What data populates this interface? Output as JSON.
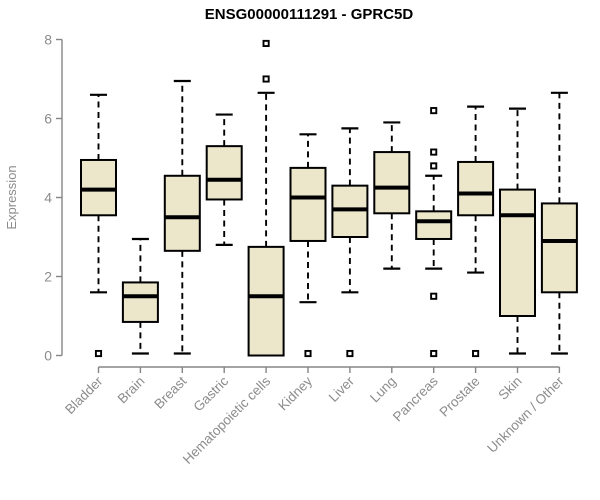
{
  "chart_data": {
    "type": "boxplot",
    "title": "ENSG00000111291 - GPRC5D",
    "xlabel": "",
    "ylabel": "Expression",
    "ylim": [
      0,
      8
    ],
    "yticks": [
      0,
      2,
      4,
      6,
      8
    ],
    "grid": false,
    "legend": "none",
    "categories": [
      "Bladder",
      "Brain",
      "Breast",
      "Gastric",
      "Hematopoietic cells",
      "Kidney",
      "Liver",
      "Lung",
      "Pancreas",
      "Prostate",
      "Skin",
      "Unknown / Other"
    ],
    "series": [
      {
        "name": "Bladder",
        "whisker_low": 1.6,
        "q1": 3.55,
        "median": 4.2,
        "q3": 4.95,
        "whisker_high": 6.6,
        "outliers": [
          0.05
        ]
      },
      {
        "name": "Brain",
        "whisker_low": 0.05,
        "q1": 0.85,
        "median": 1.5,
        "q3": 1.85,
        "whisker_high": 2.95,
        "outliers": []
      },
      {
        "name": "Breast",
        "whisker_low": 0.05,
        "q1": 2.65,
        "median": 3.5,
        "q3": 4.55,
        "whisker_high": 6.95,
        "outliers": []
      },
      {
        "name": "Gastric",
        "whisker_low": 2.8,
        "q1": 3.95,
        "median": 4.45,
        "q3": 5.3,
        "whisker_high": 6.1,
        "outliers": []
      },
      {
        "name": "Hematopoietic cells",
        "whisker_low": 0.0,
        "q1": 0.0,
        "median": 1.5,
        "q3": 2.75,
        "whisker_high": 6.65,
        "outliers": [
          7.9,
          7.0
        ]
      },
      {
        "name": "Kidney",
        "whisker_low": 1.35,
        "q1": 2.9,
        "median": 4.0,
        "q3": 4.75,
        "whisker_high": 5.6,
        "outliers": [
          0.05
        ]
      },
      {
        "name": "Liver",
        "whisker_low": 1.6,
        "q1": 3.0,
        "median": 3.7,
        "q3": 4.3,
        "whisker_high": 5.75,
        "outliers": [
          0.05
        ]
      },
      {
        "name": "Lung",
        "whisker_low": 2.2,
        "q1": 3.6,
        "median": 4.25,
        "q3": 5.15,
        "whisker_high": 5.9,
        "outliers": []
      },
      {
        "name": "Pancreas",
        "whisker_low": 2.2,
        "q1": 2.95,
        "median": 3.4,
        "q3": 3.65,
        "whisker_high": 4.55,
        "outliers": [
          6.2,
          5.15,
          4.8,
          1.5,
          0.05
        ]
      },
      {
        "name": "Prostate",
        "whisker_low": 2.1,
        "q1": 3.55,
        "median": 4.1,
        "q3": 4.9,
        "whisker_high": 6.3,
        "outliers": [
          0.05
        ]
      },
      {
        "name": "Skin",
        "whisker_low": 0.05,
        "q1": 1.0,
        "median": 3.55,
        "q3": 4.2,
        "whisker_high": 6.25,
        "outliers": []
      },
      {
        "name": "Unknown / Other",
        "whisker_low": 0.05,
        "q1": 1.6,
        "median": 2.9,
        "q3": 3.85,
        "whisker_high": 6.65,
        "outliers": []
      }
    ],
    "colors": {
      "box_fill": "#ECE7CB",
      "box_stroke": "#000000",
      "median": "#000000",
      "axis": "#858585",
      "tick_label": "#8C8C8C",
      "title": "#000000",
      "background": "#FFFFFF"
    }
  }
}
